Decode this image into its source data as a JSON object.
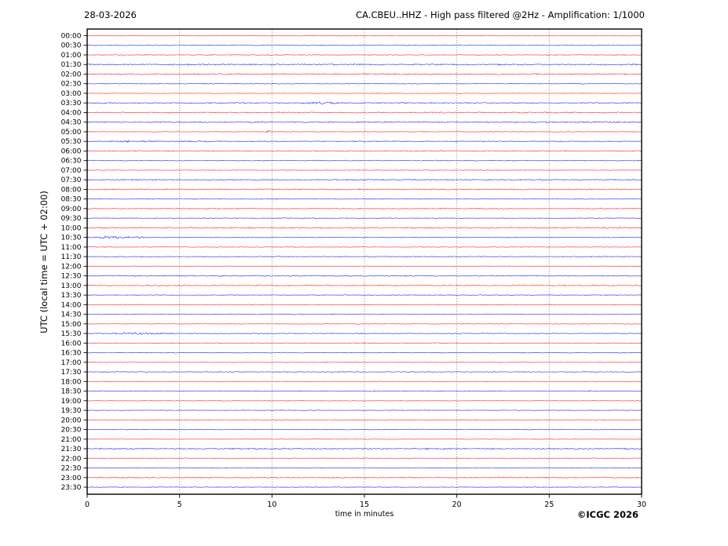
{
  "header": {
    "date": "28-03-2026",
    "title": "CA.CBEU..HHZ - High pass filtered @2Hz - Amplification: 1/1000"
  },
  "footer": {
    "copyright": "©ICGC 2026"
  },
  "chart_data": {
    "type": "line",
    "subtype": "helicorder-daily-seismogram",
    "title": "CA.CBEU..HHZ - High pass filtered @2Hz - Amplification: 1/1000",
    "date": "28-03-2026",
    "station": "CA.CBEU..HHZ",
    "filter": "High pass filtered @2Hz",
    "amplification": "1/1000",
    "xlabel": "time in minutes",
    "ylabel": "UTC (local time = UTC + 02:00)",
    "xlim": [
      0,
      30
    ],
    "x_ticks": [
      "0",
      "5",
      "10",
      "15",
      "20",
      "25",
      "30"
    ],
    "grid_minutes": [
      5,
      10,
      15,
      20,
      25
    ],
    "grid": "vertical-dotted",
    "legend": "none",
    "trace_colors": {
      "red": "#ff2020",
      "blue": "#2020ff"
    },
    "rows": [
      {
        "label": "00:00",
        "color": "red",
        "noise": 0.5
      },
      {
        "label": "00:30",
        "color": "blue",
        "noise": 0.6
      },
      {
        "label": "01:00",
        "color": "red",
        "noise": 0.6
      },
      {
        "label": "01:30",
        "color": "blue",
        "noise": 1.0
      },
      {
        "label": "02:00",
        "color": "red",
        "noise": 1.0
      },
      {
        "label": "02:30",
        "color": "blue",
        "noise": 0.5
      },
      {
        "label": "03:00",
        "color": "red",
        "noise": 0.45
      },
      {
        "label": "03:30",
        "color": "blue",
        "noise": 0.8
      },
      {
        "label": "04:00",
        "color": "red",
        "noise": 0.9
      },
      {
        "label": "04:30",
        "color": "blue",
        "noise": 1.0
      },
      {
        "label": "05:00",
        "color": "red",
        "noise": 0.5
      },
      {
        "label": "05:30",
        "color": "blue",
        "noise": 0.7
      },
      {
        "label": "06:00",
        "color": "red",
        "noise": 0.8
      },
      {
        "label": "06:30",
        "color": "blue",
        "noise": 0.6
      },
      {
        "label": "07:00",
        "color": "red",
        "noise": 0.5
      },
      {
        "label": "07:30",
        "color": "blue",
        "noise": 0.9
      },
      {
        "label": "08:00",
        "color": "red",
        "noise": 0.9
      },
      {
        "label": "08:30",
        "color": "blue",
        "noise": 0.5
      },
      {
        "label": "09:00",
        "color": "red",
        "noise": 0.8
      },
      {
        "label": "09:30",
        "color": "blue",
        "noise": 0.6
      },
      {
        "label": "10:00",
        "color": "red",
        "noise": 1.0
      },
      {
        "label": "10:30",
        "color": "blue",
        "noise": 0.6
      },
      {
        "label": "11:00",
        "color": "red",
        "noise": 0.5
      },
      {
        "label": "11:30",
        "color": "blue",
        "noise": 0.6
      },
      {
        "label": "12:00",
        "color": "red",
        "noise": 0.5
      },
      {
        "label": "12:30",
        "color": "blue",
        "noise": 0.8
      },
      {
        "label": "13:00",
        "color": "red",
        "noise": 0.9
      },
      {
        "label": "13:30",
        "color": "blue",
        "noise": 0.5
      },
      {
        "label": "14:00",
        "color": "red",
        "noise": 0.5
      },
      {
        "label": "14:30",
        "color": "blue",
        "noise": 0.6
      },
      {
        "label": "15:00",
        "color": "red",
        "noise": 0.5
      },
      {
        "label": "15:30",
        "color": "blue",
        "noise": 0.7
      },
      {
        "label": "16:00",
        "color": "red",
        "noise": 0.5
      },
      {
        "label": "16:30",
        "color": "blue",
        "noise": 0.6
      },
      {
        "label": "17:00",
        "color": "red",
        "noise": 0.5
      },
      {
        "label": "17:30",
        "color": "blue",
        "noise": 0.6
      },
      {
        "label": "18:00",
        "color": "red",
        "noise": 0.5
      },
      {
        "label": "18:30",
        "color": "blue",
        "noise": 0.6
      },
      {
        "label": "19:00",
        "color": "red",
        "noise": 0.5
      },
      {
        "label": "19:30",
        "color": "blue",
        "noise": 0.5
      },
      {
        "label": "20:00",
        "color": "red",
        "noise": 0.5
      },
      {
        "label": "20:30",
        "color": "blue",
        "noise": 0.6
      },
      {
        "label": "21:00",
        "color": "red",
        "noise": 0.5
      },
      {
        "label": "21:30",
        "color": "blue",
        "noise": 1.0
      },
      {
        "label": "22:00",
        "color": "red",
        "noise": 0.6
      },
      {
        "label": "22:30",
        "color": "blue",
        "noise": 0.5
      },
      {
        "label": "23:00",
        "color": "red",
        "noise": 0.9
      },
      {
        "label": "23:30",
        "color": "blue",
        "noise": 0.6
      }
    ],
    "events": [
      {
        "row": "02:30",
        "start_min": 26.5,
        "end_min": 26.9,
        "amp": 1.4
      },
      {
        "row": "03:30",
        "start_min": 11.0,
        "end_min": 14.8,
        "amp": 1.6
      },
      {
        "row": "05:00",
        "start_min": 9.6,
        "end_min": 10.0,
        "amp": 2.6
      },
      {
        "row": "05:30",
        "start_min": 0.8,
        "end_min": 4.2,
        "amp": 1.7
      },
      {
        "row": "05:30",
        "start_min": 4.2,
        "end_min": 8.0,
        "amp": 1.1
      },
      {
        "row": "09:30",
        "start_min": 10.5,
        "end_min": 11.2,
        "amp": 1.7
      },
      {
        "row": "10:00",
        "start_min": 26.8,
        "end_min": 29.8,
        "amp": 1.5
      },
      {
        "row": "10:30",
        "start_min": 0.0,
        "end_min": 3.2,
        "amp": 2.2
      },
      {
        "row": "15:30",
        "start_min": 1.0,
        "end_min": 5.2,
        "amp": 1.7
      },
      {
        "row": "18:30",
        "start_min": 27.1,
        "end_min": 27.5,
        "amp": 1.6
      }
    ]
  }
}
